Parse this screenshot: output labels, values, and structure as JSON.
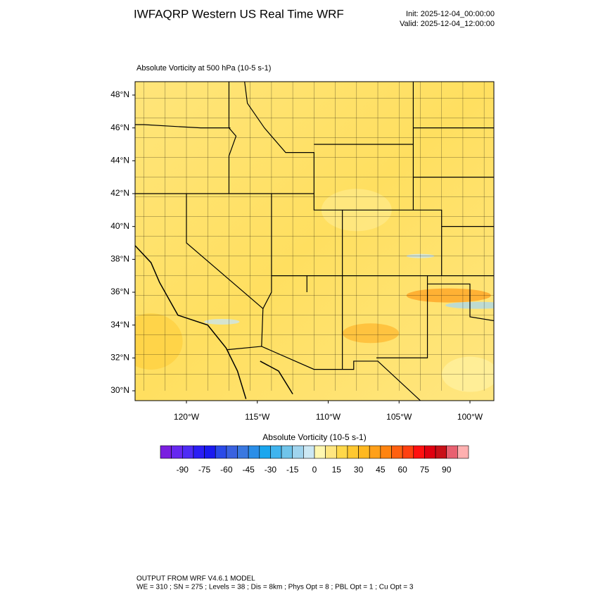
{
  "header": {
    "title": "IWFAQRP Western US Real Time WRF",
    "init": "Init: 2025-12-04_00:00:00",
    "valid": "Valid: 2025-12-04_12:00:00"
  },
  "map": {
    "field_label": "Absolute Vorticity at 500 hPa   (10-5 s-1)",
    "lat_labels": [
      "48°N",
      "46°N",
      "44°N",
      "42°N",
      "40°N",
      "38°N",
      "36°N",
      "34°N",
      "32°N",
      "30°N"
    ],
    "lon_labels": [
      "120°W",
      "115°W",
      "110°W",
      "105°W",
      "100°W"
    ]
  },
  "colorbar": {
    "title": "Absolute Vorticity  (10-5 s-1)",
    "range": [
      -105,
      105
    ],
    "ticks": [
      -90,
      -75,
      -60,
      -45,
      -30,
      -15,
      0,
      15,
      30,
      45,
      60,
      75,
      90
    ],
    "colors": [
      "#7a1fe0",
      "#6628f0",
      "#4e2cf5",
      "#2b1ef5",
      "#1a1af0",
      "#2a4ae8",
      "#3a62e0",
      "#3a78e0",
      "#2a8ee8",
      "#1aa6ee",
      "#40b4ee",
      "#70c4ea",
      "#a0d4ee",
      "#cce8f4",
      "#fff7b0",
      "#ffe680",
      "#ffd84a",
      "#ffc830",
      "#ffb820",
      "#ffa01a",
      "#ff8410",
      "#ff6010",
      "#ff4010",
      "#ff1010",
      "#e00010",
      "#c81018",
      "#e86070",
      "#ffb0b0"
    ]
  },
  "footer": {
    "line1": "OUTPUT FROM WRF V4.6.1 MODEL",
    "line2": "WE = 310 ; SN = 275 ; Levels = 38 ; Dis = 8km ; Phys Opt = 8 ; PBL Opt = 1 ; Cu Opt = 3"
  }
}
